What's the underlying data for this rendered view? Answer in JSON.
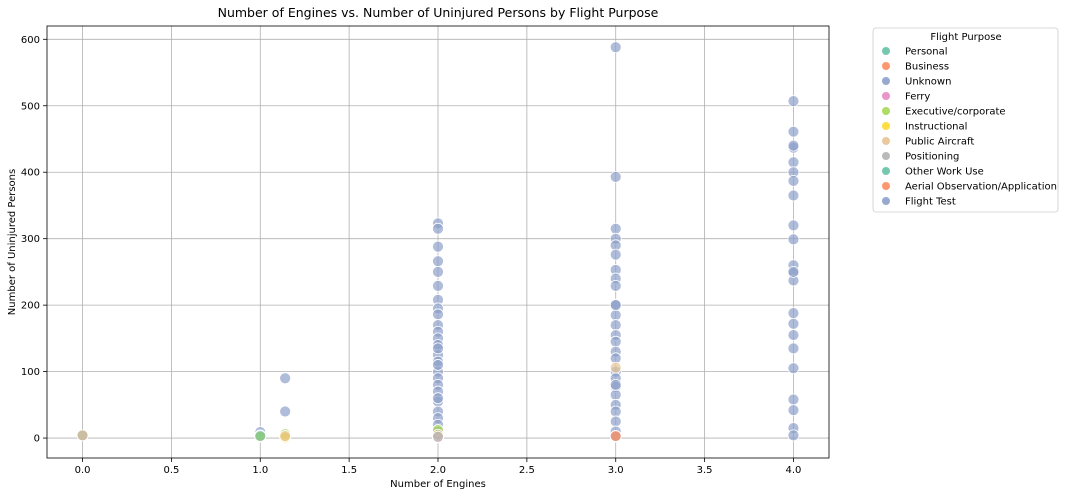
{
  "chart_data": {
    "type": "scatter",
    "title": "Number of Engines vs. Number of Uninjured Persons by Flight Purpose",
    "xlabel": "Number of Engines",
    "ylabel": "Number of Uninjured Persons",
    "xlim": [
      -0.2,
      4.2
    ],
    "ylim": [
      -30,
      620
    ],
    "xticks": [
      0.0,
      0.5,
      1.0,
      1.5,
      2.0,
      2.5,
      3.0,
      3.5,
      4.0
    ],
    "xtick_labels": [
      "0.0",
      "0.5",
      "1.0",
      "1.5",
      "2.0",
      "2.5",
      "3.0",
      "3.5",
      "4.0"
    ],
    "yticks": [
      0,
      100,
      200,
      300,
      400,
      500,
      600
    ],
    "ytick_labels": [
      "0",
      "100",
      "200",
      "300",
      "400",
      "500",
      "600"
    ],
    "grid": true,
    "legend": {
      "title": "Flight Purpose",
      "placement": "outside-right"
    },
    "series": [
      {
        "name": "Personal",
        "color": "#66c2a5",
        "points": [
          [
            0.0,
            4
          ],
          [
            1.0,
            3
          ],
          [
            1.0,
            5
          ],
          [
            1.14,
            3
          ],
          [
            2.0,
            2
          ],
          [
            3.0,
            3
          ]
        ]
      },
      {
        "name": "Business",
        "color": "#fc8d62",
        "points": [
          [
            1.14,
            2
          ],
          [
            2.0,
            3
          ],
          [
            3.0,
            2
          ]
        ]
      },
      {
        "name": "Unknown",
        "color": "#8da0cb",
        "points": [
          [
            0.0,
            4
          ],
          [
            1.0,
            9
          ],
          [
            1.14,
            90
          ],
          [
            1.14,
            40
          ],
          [
            2.0,
            323
          ],
          [
            2.0,
            315
          ],
          [
            2.0,
            288
          ],
          [
            2.0,
            266
          ],
          [
            2.0,
            250
          ],
          [
            2.0,
            229
          ],
          [
            2.0,
            208
          ],
          [
            2.0,
            195
          ],
          [
            2.0,
            186
          ],
          [
            2.0,
            170
          ],
          [
            2.0,
            160
          ],
          [
            2.0,
            150
          ],
          [
            2.0,
            140
          ],
          [
            2.0,
            125
          ],
          [
            2.0,
            115
          ],
          [
            2.0,
            100
          ],
          [
            2.0,
            90
          ],
          [
            2.0,
            80
          ],
          [
            2.0,
            70
          ],
          [
            2.0,
            55
          ],
          [
            2.0,
            40
          ],
          [
            2.0,
            30
          ],
          [
            2.0,
            20
          ],
          [
            2.0,
            10
          ],
          [
            2.0,
            5
          ],
          [
            3.0,
            588
          ],
          [
            3.0,
            393
          ],
          [
            3.0,
            315
          ],
          [
            3.0,
            300
          ],
          [
            3.0,
            290
          ],
          [
            3.0,
            276
          ],
          [
            3.0,
            253
          ],
          [
            3.0,
            240
          ],
          [
            3.0,
            229
          ],
          [
            3.0,
            201
          ],
          [
            3.0,
            185
          ],
          [
            3.0,
            170
          ],
          [
            3.0,
            155
          ],
          [
            3.0,
            145
          ],
          [
            3.0,
            130
          ],
          [
            3.0,
            120
          ],
          [
            3.0,
            100
          ],
          [
            3.0,
            90
          ],
          [
            3.0,
            77
          ],
          [
            3.0,
            65
          ],
          [
            3.0,
            50
          ],
          [
            3.0,
            40
          ],
          [
            3.0,
            25
          ],
          [
            3.0,
            10
          ],
          [
            3.0,
            3
          ],
          [
            4.0,
            507
          ],
          [
            4.0,
            461
          ],
          [
            4.0,
            437
          ],
          [
            4.0,
            415
          ],
          [
            4.0,
            400
          ],
          [
            4.0,
            387
          ],
          [
            4.0,
            365
          ],
          [
            4.0,
            320
          ],
          [
            4.0,
            299
          ],
          [
            4.0,
            260
          ],
          [
            4.0,
            248
          ],
          [
            4.0,
            237
          ],
          [
            4.0,
            188
          ],
          [
            4.0,
            172
          ],
          [
            4.0,
            155
          ],
          [
            4.0,
            135
          ],
          [
            4.0,
            105
          ],
          [
            4.0,
            58
          ],
          [
            4.0,
            42
          ],
          [
            4.0,
            15
          ],
          [
            4.0,
            4
          ]
        ]
      },
      {
        "name": "Ferry",
        "color": "#e78ac3",
        "points": [
          [
            2.0,
            1
          ]
        ]
      },
      {
        "name": "Executive/corporate",
        "color": "#a6d854",
        "points": [
          [
            1.0,
            4
          ],
          [
            1.14,
            6
          ],
          [
            2.0,
            12
          ]
        ]
      },
      {
        "name": "Instructional",
        "color": "#ffd92f",
        "points": [
          [
            1.0,
            2
          ],
          [
            1.14,
            1
          ]
        ]
      },
      {
        "name": "Public Aircraft",
        "color": "#e5c494",
        "points": [
          [
            0.0,
            4
          ],
          [
            1.14,
            3
          ],
          [
            2.0,
            5
          ],
          [
            3.0,
            106
          ]
        ]
      },
      {
        "name": "Positioning",
        "color": "#b3b3b3",
        "points": [
          [
            2.0,
            2
          ],
          [
            3.0,
            2
          ]
        ]
      },
      {
        "name": "Other Work Use",
        "color": "#66c2a5",
        "points": [
          [
            1.0,
            3
          ]
        ]
      },
      {
        "name": "Aerial Observation/Application",
        "color": "#fc8d62",
        "points": [
          [
            3.0,
            3
          ]
        ]
      },
      {
        "name": "Flight Test",
        "color": "#8da0cb",
        "points": [
          [
            2.0,
            60
          ],
          [
            2.0,
            135
          ],
          [
            2.0,
            110
          ],
          [
            3.0,
            80
          ],
          [
            3.0,
            200
          ],
          [
            4.0,
            440
          ],
          [
            4.0,
            250
          ]
        ]
      }
    ]
  }
}
